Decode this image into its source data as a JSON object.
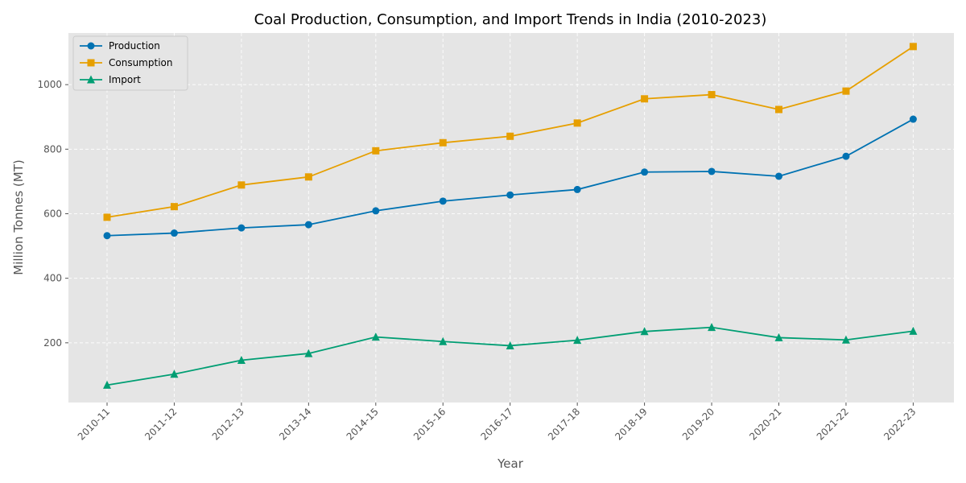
{
  "chart_data": {
    "type": "line",
    "title": "Coal Production, Consumption, and Import Trends in India (2010-2023)",
    "xlabel": "Year",
    "ylabel": "Million Tonnes (MT)",
    "categories": [
      "2010-11",
      "2011-12",
      "2012-13",
      "2013-14",
      "2014-15",
      "2015-16",
      "2016-17",
      "2017-18",
      "2018-19",
      "2019-20",
      "2020-21",
      "2021-22",
      "2022-23"
    ],
    "ylim": [
      15,
      1160
    ],
    "yticks": [
      200,
      400,
      600,
      800,
      1000
    ],
    "grid": true,
    "legend_position": "top-left",
    "series": [
      {
        "name": "Production",
        "color": "#0072B2",
        "marker": "circle",
        "values": [
          532,
          540,
          556,
          566,
          609,
          639,
          658,
          675,
          729,
          731,
          716,
          778,
          893
        ]
      },
      {
        "name": "Consumption",
        "color": "#E69F00",
        "marker": "square",
        "values": [
          589,
          622,
          689,
          714,
          795,
          820,
          840,
          881,
          956,
          969,
          923,
          980,
          1118
        ]
      },
      {
        "name": "Import",
        "color": "#009E73",
        "marker": "triangle",
        "values": [
          69,
          103,
          146,
          167,
          218,
          204,
          191,
          208,
          235,
          248,
          216,
          209,
          236
        ]
      }
    ]
  }
}
